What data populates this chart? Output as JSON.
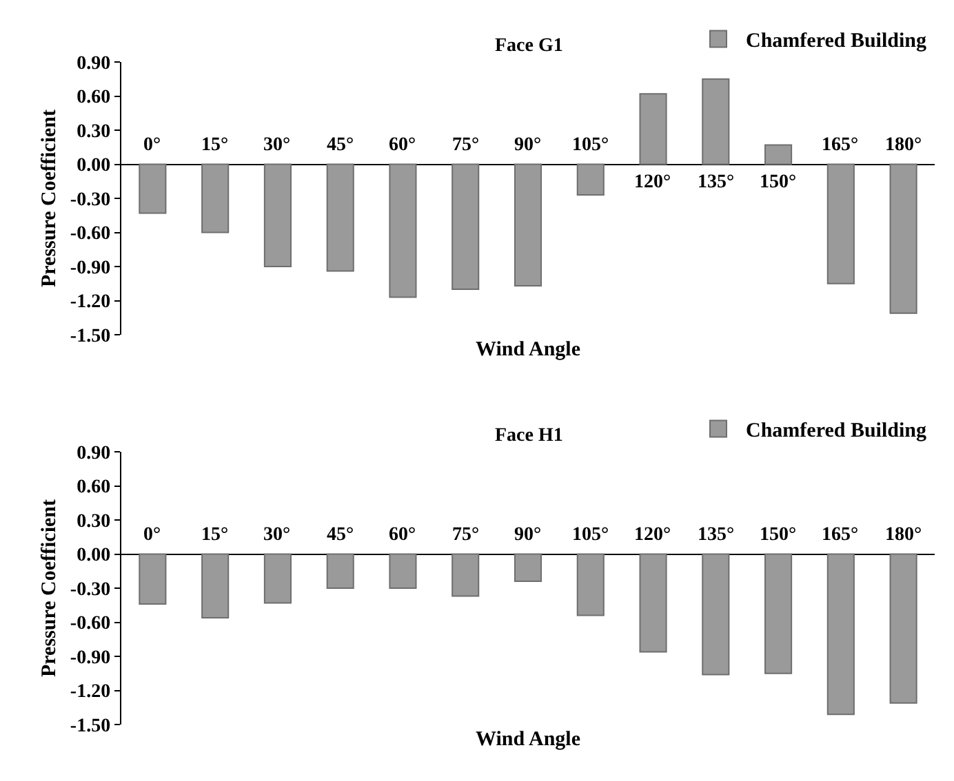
{
  "chart_data": [
    {
      "type": "bar",
      "title": "Face G1",
      "xlabel": "Wind Angle",
      "ylabel": "Pressure Coefficient",
      "categories": [
        "0°",
        "15°",
        "30°",
        "45°",
        "60°",
        "75°",
        "90°",
        "105°",
        "120°",
        "135°",
        "150°",
        "165°",
        "180°"
      ],
      "series": [
        {
          "name": "Chamfered Building",
          "color": "#9a9a9a",
          "values": [
            -0.43,
            -0.6,
            -0.9,
            -0.94,
            -1.17,
            -1.1,
            -1.07,
            -0.27,
            0.62,
            0.75,
            0.17,
            -1.05,
            -1.31
          ]
        }
      ],
      "ylim": [
        -1.5,
        0.9
      ],
      "yticks": [
        {
          "value": 0.9,
          "label": "0.90"
        },
        {
          "value": 0.6,
          "label": "0.60"
        },
        {
          "value": 0.3,
          "label": "0.30"
        },
        {
          "value": 0,
          "label": "0.00"
        },
        {
          "value": -0.3,
          "label": "-0.30"
        },
        {
          "value": -0.6,
          "label": "-0.60"
        },
        {
          "value": -0.9,
          "label": "-0.90"
        },
        {
          "value": -1.2,
          "label": "-1.20"
        },
        {
          "value": -1.5,
          "label": "-1.50"
        }
      ],
      "grid": false,
      "legend": "top right"
    },
    {
      "type": "bar",
      "title": "Face H1",
      "xlabel": "Wind Angle",
      "ylabel": "Pressure Coefficient",
      "categories": [
        "0°",
        "15°",
        "30°",
        "45°",
        "60°",
        "75°",
        "90°",
        "105°",
        "120°",
        "135°",
        "150°",
        "165°",
        "180°"
      ],
      "series": [
        {
          "name": "Chamfered Building",
          "color": "#9a9a9a",
          "values": [
            -0.44,
            -0.56,
            -0.43,
            -0.3,
            -0.3,
            -0.37,
            -0.24,
            -0.54,
            -0.86,
            -1.06,
            -1.05,
            -1.41,
            -1.31
          ]
        }
      ],
      "ylim": [
        -1.5,
        0.9
      ],
      "yticks": [
        {
          "value": 0.9,
          "label": "0.90"
        },
        {
          "value": 0.6,
          "label": "0.60"
        },
        {
          "value": 0.3,
          "label": "0.30"
        },
        {
          "value": 0,
          "label": "0.00"
        },
        {
          "value": -0.3,
          "label": "-0.30"
        },
        {
          "value": -0.6,
          "label": "-0.60"
        },
        {
          "value": -0.9,
          "label": "-0.90"
        },
        {
          "value": -1.2,
          "label": "-1.20"
        },
        {
          "value": -1.5,
          "label": "-1.50"
        }
      ],
      "grid": false,
      "legend": "top right"
    }
  ]
}
